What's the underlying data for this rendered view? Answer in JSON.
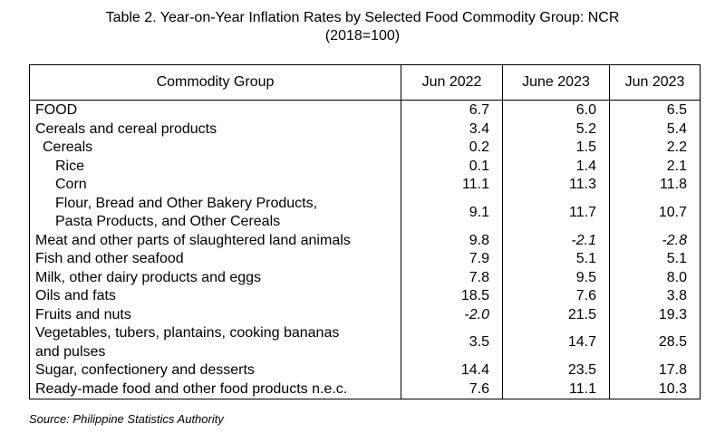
{
  "title_line1": "Table 2. Year-on-Year Inflation Rates by Selected Food Commodity Group: NCR",
  "title_line2": "(2018=100)",
  "headers": [
    "Commodity Group",
    "Jun 2022",
    "June 2023",
    "Jun 2023"
  ],
  "rows": [
    {
      "label": "FOOD",
      "indent": 0,
      "values": [
        "6.7",
        "6.0",
        "6.5"
      ]
    },
    {
      "label": "Cereals and cereal products",
      "indent": 0,
      "values": [
        "3.4",
        "5.2",
        "5.4"
      ]
    },
    {
      "label": "Cereals",
      "indent": 1,
      "values": [
        "0.2",
        "1.5",
        "2.2"
      ]
    },
    {
      "label": "Rice",
      "indent": 2,
      "values": [
        "0.1",
        "1.4",
        "2.1"
      ]
    },
    {
      "label": "Corn",
      "indent": 2,
      "values": [
        "11.1",
        "11.3",
        "11.8"
      ]
    },
    {
      "label": "Flour, Bread and Other Bakery Products,",
      "label2": "Pasta Products, and Other Cereals",
      "indent": 2,
      "values": [
        "9.1",
        "11.7",
        "10.7"
      ]
    },
    {
      "label": "Meat and other parts of slaughtered land animals",
      "indent": 0,
      "values": [
        "9.8",
        "-2.1",
        "-2.8"
      ]
    },
    {
      "label": "Fish and other seafood",
      "indent": 0,
      "values": [
        "7.9",
        "5.1",
        "5.1"
      ]
    },
    {
      "label": "Milk, other dairy products and eggs",
      "indent": 0,
      "values": [
        "7.8",
        "9.5",
        "8.0"
      ]
    },
    {
      "label": "Oils and fats",
      "indent": 0,
      "values": [
        "18.5",
        "7.6",
        "3.8"
      ]
    },
    {
      "label": "Fruits and nuts",
      "indent": 0,
      "values": [
        "-2.0",
        "21.5",
        "19.3"
      ]
    },
    {
      "label": "Vegetables, tubers, plantains, cooking bananas",
      "label2": "and pulses",
      "indent": 0,
      "values": [
        "3.5",
        "14.7",
        "28.5"
      ]
    },
    {
      "label": "Sugar, confectionery and desserts",
      "indent": 0,
      "values": [
        "14.4",
        "23.5",
        "17.8"
      ]
    },
    {
      "label": "Ready-made food and other food products n.e.c.",
      "indent": 0,
      "values": [
        "7.6",
        "11.1",
        "10.3"
      ]
    }
  ],
  "source": "Source: Philippine Statistics Authority"
}
